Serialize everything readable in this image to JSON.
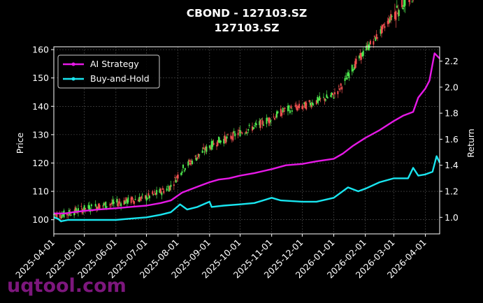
{
  "chart_data": {
    "type": "line",
    "title": "CBOND - 127103.SZ",
    "subtitle": "127103.SZ",
    "ylabel": "Price",
    "y2label": "Return",
    "ylim": [
      95,
      161
    ],
    "y2lim": [
      0.873,
      2.31
    ],
    "y_ticks": [
      100,
      110,
      120,
      130,
      140,
      150,
      160
    ],
    "y2_ticks": [
      1.0,
      1.2,
      1.4,
      1.6,
      1.8,
      2.0,
      2.2
    ],
    "y2_tick_labels": [
      "1.0",
      "1.2",
      "1.4",
      "1.6",
      "1.8",
      "2.0",
      "2.2"
    ],
    "x_range": [
      "2025-04-01",
      "2026-04-15"
    ],
    "x_ticks": [
      "2025-04-01",
      "2025-05-01",
      "2025-06-01",
      "2025-07-01",
      "2025-08-01",
      "2025-09-01",
      "2025-10-01",
      "2025-11-01",
      "2025-12-01",
      "2026-01-01",
      "2026-02-01",
      "2026-03-01",
      "2026-04-01"
    ],
    "grid": true,
    "legend_position": "upper-left",
    "candlestick_colors": {
      "up": "#4ee84e",
      "down": "#f05050"
    },
    "series": [
      {
        "name": "AI Strategy",
        "axis": "right",
        "color": "#e619e6",
        "marker": "circle",
        "points": [
          [
            "2025-04-01",
            1.03
          ],
          [
            "2025-04-07",
            1.03
          ],
          [
            "2025-04-12",
            1.03
          ],
          [
            "2025-04-20",
            1.04
          ],
          [
            "2025-05-01",
            1.05
          ],
          [
            "2025-05-15",
            1.06
          ],
          [
            "2025-06-01",
            1.07
          ],
          [
            "2025-06-15",
            1.08
          ],
          [
            "2025-07-01",
            1.09
          ],
          [
            "2025-07-15",
            1.11
          ],
          [
            "2025-07-25",
            1.13
          ],
          [
            "2025-08-05",
            1.19
          ],
          [
            "2025-08-15",
            1.22
          ],
          [
            "2025-08-25",
            1.25
          ],
          [
            "2025-09-01",
            1.27
          ],
          [
            "2025-09-10",
            1.29
          ],
          [
            "2025-09-20",
            1.3
          ],
          [
            "2025-10-01",
            1.32
          ],
          [
            "2025-10-15",
            1.34
          ],
          [
            "2025-11-01",
            1.37
          ],
          [
            "2025-11-15",
            1.4
          ],
          [
            "2025-12-01",
            1.41
          ],
          [
            "2025-12-15",
            1.43
          ],
          [
            "2026-01-01",
            1.45
          ],
          [
            "2026-01-10",
            1.49
          ],
          [
            "2026-01-20",
            1.55
          ],
          [
            "2026-02-01",
            1.61
          ],
          [
            "2026-02-15",
            1.67
          ],
          [
            "2026-03-01",
            1.74
          ],
          [
            "2026-03-10",
            1.78
          ],
          [
            "2026-03-20",
            1.81
          ],
          [
            "2026-03-25",
            1.92
          ],
          [
            "2026-04-01",
            1.99
          ],
          [
            "2026-04-05",
            2.05
          ],
          [
            "2026-04-10",
            2.26
          ],
          [
            "2026-04-15",
            2.22
          ]
        ]
      },
      {
        "name": "Buy-and-Hold",
        "axis": "right",
        "color": "#19e6f0",
        "marker": "circle",
        "points": [
          [
            "2025-04-01",
            1.0
          ],
          [
            "2025-04-05",
            0.99
          ],
          [
            "2025-04-08",
            0.97
          ],
          [
            "2025-04-15",
            0.98
          ],
          [
            "2025-05-01",
            0.98
          ],
          [
            "2025-05-15",
            0.98
          ],
          [
            "2025-06-01",
            0.98
          ],
          [
            "2025-06-15",
            0.99
          ],
          [
            "2025-07-01",
            1.0
          ],
          [
            "2025-07-15",
            1.02
          ],
          [
            "2025-07-25",
            1.04
          ],
          [
            "2025-08-03",
            1.1
          ],
          [
            "2025-08-10",
            1.06
          ],
          [
            "2025-08-20",
            1.08
          ],
          [
            "2025-09-01",
            1.12
          ],
          [
            "2025-09-03",
            1.08
          ],
          [
            "2025-09-15",
            1.09
          ],
          [
            "2025-10-01",
            1.1
          ],
          [
            "2025-10-15",
            1.11
          ],
          [
            "2025-11-01",
            1.15
          ],
          [
            "2025-11-10",
            1.13
          ],
          [
            "2025-12-01",
            1.12
          ],
          [
            "2025-12-15",
            1.12
          ],
          [
            "2026-01-01",
            1.15
          ],
          [
            "2026-01-15",
            1.23
          ],
          [
            "2026-01-25",
            1.2
          ],
          [
            "2026-02-01",
            1.22
          ],
          [
            "2026-02-15",
            1.27
          ],
          [
            "2026-03-01",
            1.3
          ],
          [
            "2026-03-15",
            1.3
          ],
          [
            "2026-03-20",
            1.38
          ],
          [
            "2026-03-25",
            1.32
          ],
          [
            "2026-04-01",
            1.33
          ],
          [
            "2026-04-08",
            1.35
          ],
          [
            "2026-04-12",
            1.47
          ],
          [
            "2026-04-15",
            1.42
          ]
        ]
      }
    ]
  },
  "watermark": "uqtool.com"
}
